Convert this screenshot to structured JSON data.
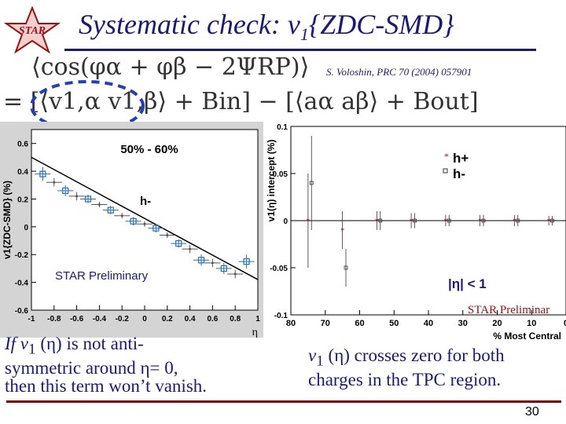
{
  "logo_text": "STAR",
  "title": {
    "main": "Systematic check: v",
    "sub": "1",
    "tail": "{ZDC-SMD}"
  },
  "reference": "S. Voloshin, PRC 70 (2004) 057901",
  "equation": {
    "line1": "⟨cos(φα + φβ − 2ΨRP)⟩",
    "line2": "= [⟨v1,α v1,β⟩ + Bin] − [⟨aα aβ⟩ + Bout]"
  },
  "caption_left": {
    "l1a": "If v",
    "l1sub": "1",
    "l1b": " (η) is not anti-",
    "l2": "symmetric around η= 0,",
    "l3": "then this term won’t vanish."
  },
  "caption_right": {
    "l1a": "v",
    "l1sub": "1",
    "l1b": " (η) crosses zero for both",
    "l2": "charges in the TPC region."
  },
  "page_number": "30",
  "colors": {
    "title": "#1a1a7a",
    "rule_bottom": "#8b0000",
    "left_bg": "#d4d4d4",
    "data_blue": "#1f6fbf",
    "star_red": "#a01010"
  },
  "chart_data": [
    {
      "type": "scatter",
      "title": "50% - 60%",
      "ylabel": "v1{ZDC-SMD} (%)",
      "xlabel": "η",
      "annotation": "h-",
      "preliminary": "STAR Preliminary",
      "xlim": [
        -1,
        1
      ],
      "ylim": [
        -0.6,
        0.7
      ],
      "xticks": [
        "-1",
        "-0.8",
        "-0.6",
        "-0.4",
        "-0.2",
        "0",
        "0.2",
        "0.4",
        "0.6",
        "0.8",
        "1"
      ],
      "yticks": [
        "0.6",
        "0.4",
        "0.2",
        "0",
        "-0.2",
        "-0.4",
        "-0.6"
      ],
      "series": [
        {
          "marker": "square",
          "color": "#1f6fbf",
          "x": [
            -0.9,
            -0.7,
            -0.5,
            -0.3,
            -0.1,
            0.1,
            0.3,
            0.5,
            0.7,
            0.9
          ],
          "y": [
            0.38,
            0.26,
            0.2,
            0.12,
            0.04,
            -0.01,
            -0.12,
            -0.24,
            -0.3,
            -0.25
          ],
          "err": [
            0.05,
            0.04,
            0.03,
            0.03,
            0.03,
            0.03,
            0.03,
            0.04,
            0.04,
            0.05
          ]
        },
        {
          "marker": "cross",
          "color": "#555555",
          "x": [
            -0.8,
            -0.6,
            -0.4,
            -0.2,
            0.0,
            0.2,
            0.4,
            0.6,
            0.8
          ],
          "y": [
            0.32,
            0.22,
            0.16,
            0.08,
            0.02,
            -0.06,
            -0.16,
            -0.26,
            -0.34
          ],
          "err": [
            0.03,
            0.03,
            0.02,
            0.02,
            0.02,
            0.02,
            0.03,
            0.03,
            0.03
          ]
        }
      ],
      "fit": {
        "x": [
          -1,
          1
        ],
        "y": [
          0.5,
          -0.38
        ]
      }
    },
    {
      "type": "scatter",
      "ylabel": "v1(η) intercept (%)",
      "xlabel": "% Most Central",
      "legend": [
        "h+",
        "h-"
      ],
      "annotation": "|η| < 1",
      "preliminary": "STAR Preliminar",
      "xlim": [
        80,
        0
      ],
      "ylim": [
        -0.1,
        0.1
      ],
      "xticks": [
        "80",
        "70",
        "60",
        "50",
        "40",
        "30",
        "20",
        "10",
        "0"
      ],
      "yticks": [
        "0.1",
        "0.05",
        "0",
        "-0.05",
        "-0.1"
      ],
      "series": [
        {
          "name": "h+",
          "marker": "star",
          "x": [
            75,
            65,
            55,
            45,
            35,
            25,
            15,
            5
          ],
          "y": [
            0.0,
            -0.01,
            0.0,
            0.0,
            0.0,
            0.0,
            0.0,
            0.0
          ],
          "err": [
            0.05,
            0.02,
            0.01,
            0.008,
            0.006,
            0.006,
            0.006,
            0.005
          ]
        },
        {
          "name": "h-",
          "marker": "box",
          "x": [
            74,
            64,
            54,
            44,
            34,
            24,
            14,
            4
          ],
          "y": [
            0.04,
            -0.05,
            0.0,
            0.0,
            0.0,
            0.0,
            0.0,
            0.0
          ],
          "err": [
            0.05,
            0.02,
            0.01,
            0.008,
            0.006,
            0.006,
            0.006,
            0.005
          ]
        }
      ]
    }
  ]
}
